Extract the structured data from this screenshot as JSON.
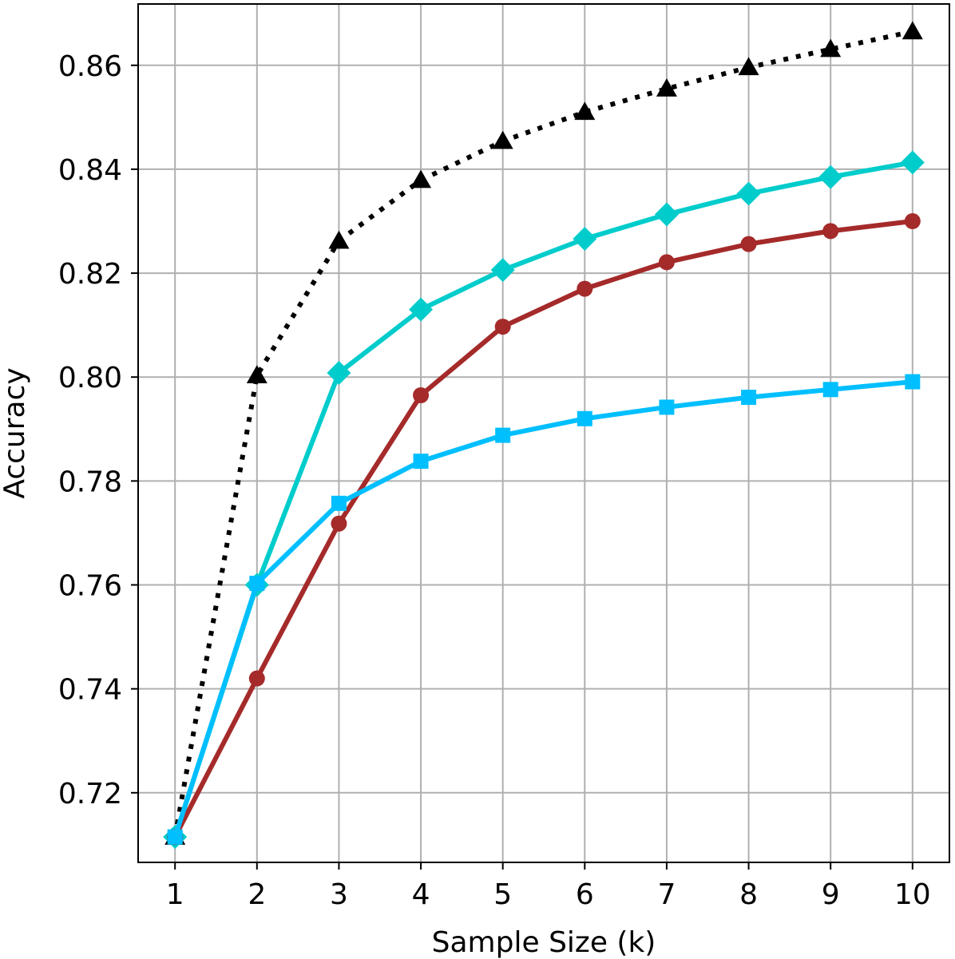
{
  "chart_data": {
    "type": "line",
    "title": "",
    "xlabel": "Sample Size (k)",
    "ylabel": "Accuracy",
    "x": [
      1,
      2,
      3,
      4,
      5,
      6,
      7,
      8,
      9,
      10
    ],
    "x_tick_labels": [
      "1",
      "2",
      "3",
      "4",
      "5",
      "6",
      "7",
      "8",
      "9",
      "10"
    ],
    "y_ticks": [
      0.72,
      0.74,
      0.76,
      0.78,
      0.8,
      0.82,
      0.84,
      0.86
    ],
    "y_tick_labels": [
      "0.72",
      "0.74",
      "0.76",
      "0.78",
      "0.80",
      "0.82",
      "0.84",
      "0.86"
    ],
    "xlim": [
      0.55,
      10.45
    ],
    "ylim": [
      0.7066,
      0.8718
    ],
    "grid": true,
    "legend": "none",
    "series": [
      {
        "key": "dotted-triangle",
        "color": "#000000",
        "line_style": "dotted",
        "marker": "triangle",
        "values": [
          0.7115,
          0.8003,
          0.8262,
          0.8379,
          0.8454,
          0.851,
          0.8555,
          0.8596,
          0.8631,
          0.8665
        ]
      },
      {
        "key": "cyan-diamond",
        "color": "#00cccc",
        "line_style": "solid",
        "marker": "diamond",
        "values": [
          0.7115,
          0.76,
          0.8008,
          0.813,
          0.8206,
          0.8266,
          0.8313,
          0.8353,
          0.8385,
          0.8413
        ]
      },
      {
        "key": "red-circle",
        "color": "#a52a2a",
        "line_style": "solid",
        "marker": "circle",
        "values": [
          0.7115,
          0.742,
          0.7718,
          0.7965,
          0.8097,
          0.817,
          0.8221,
          0.8256,
          0.8281,
          0.83
        ]
      },
      {
        "key": "blue-square",
        "color": "#00bfff",
        "line_style": "solid",
        "marker": "square",
        "values": [
          0.7115,
          0.7603,
          0.7757,
          0.7838,
          0.7888,
          0.792,
          0.7942,
          0.7961,
          0.7976,
          0.7991
        ]
      }
    ]
  }
}
